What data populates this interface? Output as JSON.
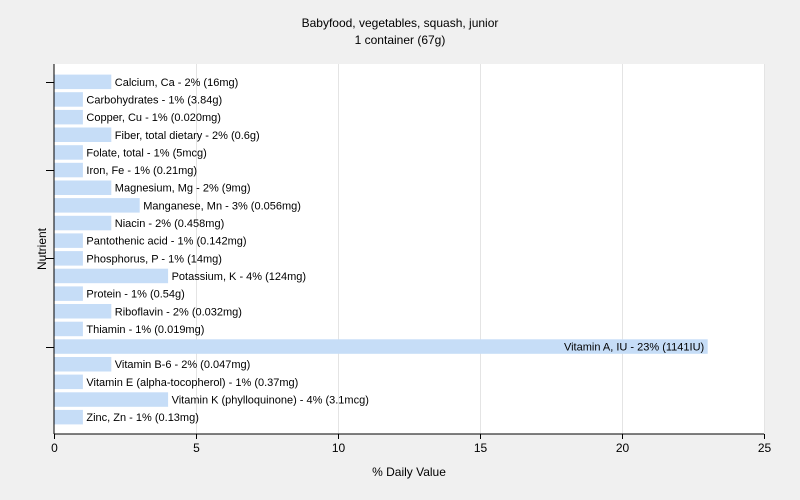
{
  "chart_data": {
    "type": "bar",
    "orientation": "horizontal",
    "title": "Babyfood, vegetables, squash, junior",
    "subtitle": "1 container (67g)",
    "xlabel": "% Daily Value",
    "ylabel": "Nutrient",
    "xlim": [
      0,
      25
    ],
    "xticks": [
      0,
      5,
      10,
      15,
      20,
      25
    ],
    "grid": "vertical",
    "bar_color": "#c6ddf7",
    "background_color": "#f0f0f0",
    "plot_background_color": "#ffffff",
    "categories": [
      "Calcium, Ca",
      "Carbohydrates",
      "Copper, Cu",
      "Fiber, total dietary",
      "Folate, total",
      "Iron, Fe",
      "Magnesium, Mg",
      "Manganese, Mn",
      "Niacin",
      "Pantothenic acid",
      "Phosphorus, P",
      "Potassium, K",
      "Protein",
      "Riboflavin",
      "Thiamin",
      "Vitamin A, IU",
      "Vitamin B-6",
      "Vitamin E (alpha-tocopherol)",
      "Vitamin K (phylloquinone)",
      "Zinc, Zn"
    ],
    "values": [
      2,
      1,
      1,
      2,
      1,
      1,
      2,
      3,
      2,
      1,
      1,
      4,
      1,
      2,
      1,
      23,
      2,
      1,
      4,
      1
    ],
    "labels": [
      "Calcium, Ca - 2% (16mg)",
      "Carbohydrates - 1% (3.84g)",
      "Copper, Cu - 1% (0.020mg)",
      "Fiber, total dietary - 2% (0.6g)",
      "Folate, total - 1% (5mcg)",
      "Iron, Fe - 1% (0.21mg)",
      "Magnesium, Mg - 2% (9mg)",
      "Manganese, Mn - 3% (0.056mg)",
      "Niacin - 2% (0.458mg)",
      "Pantothenic acid - 1% (0.142mg)",
      "Phosphorus, P - 1% (14mg)",
      "Potassium, K - 4% (124mg)",
      "Protein - 1% (0.54g)",
      "Riboflavin - 2% (0.032mg)",
      "Thiamin - 1% (0.019mg)",
      "Vitamin A, IU - 23% (1141IU)",
      "Vitamin B-6 - 2% (0.047mg)",
      "Vitamin E (alpha-tocopherol) - 1% (0.37mg)",
      "Vitamin K (phylloquinone) - 4% (3.1mcg)",
      "Zinc, Zn - 1% (0.13mg)"
    ]
  }
}
